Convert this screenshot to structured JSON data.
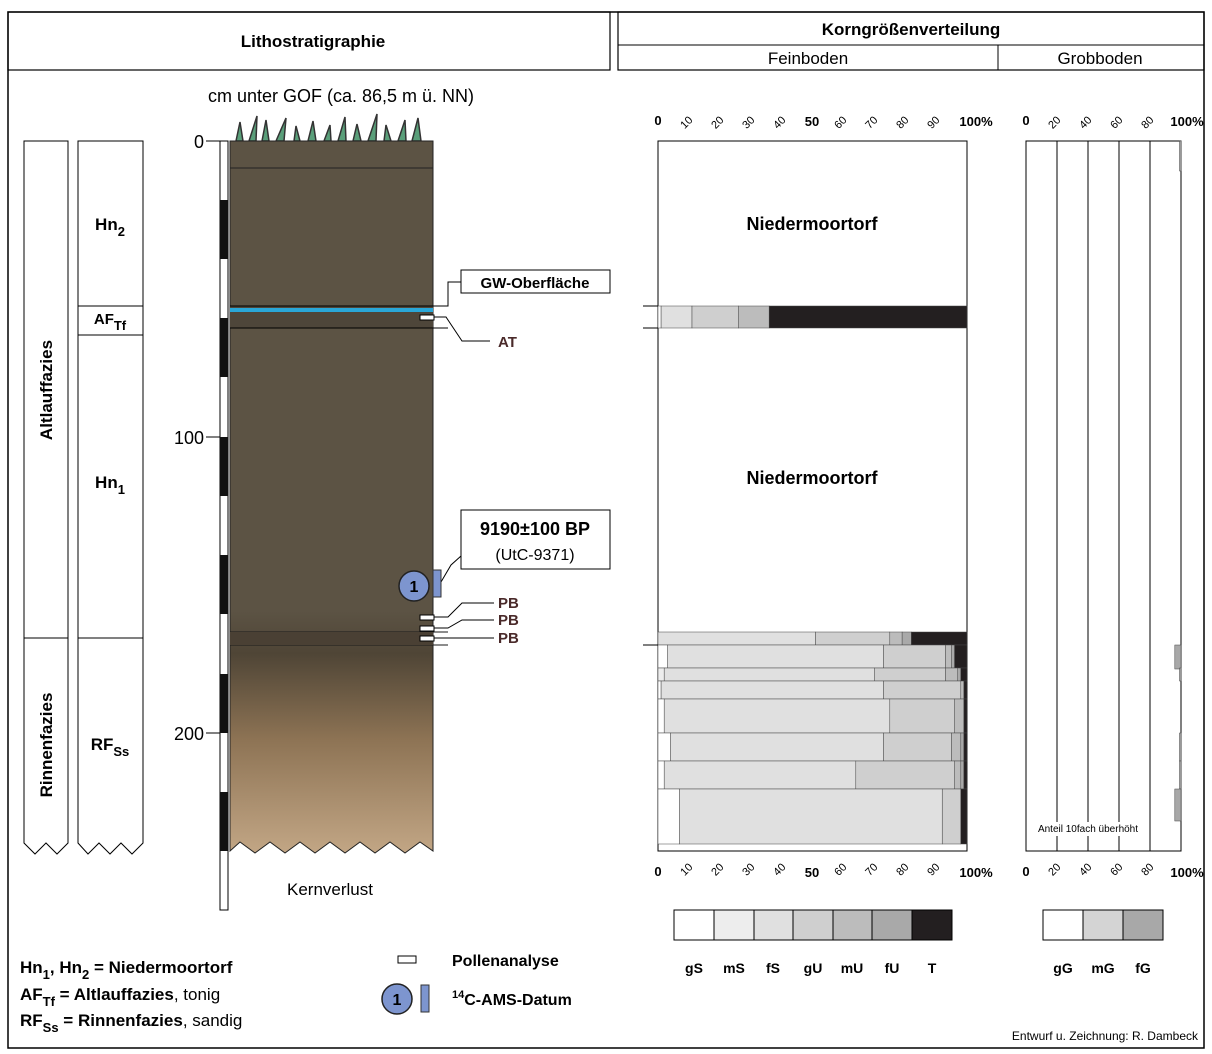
{
  "header": {
    "lithostratigraphie": "Lithostratigraphie",
    "korngroessenverteilung": "Korngrößenverteilung",
    "feinboden": "Feinboden",
    "grobboden": "Grobboden"
  },
  "depth_axis": {
    "title": "cm unter GOF (ca. 86,5 m ü. NN)",
    "ticks": [
      "0",
      "100",
      "200"
    ],
    "core_loss": "Kernverlust"
  },
  "facies": {
    "altlauf": "Altlauffazies",
    "rinnen": "Rinnenfazies"
  },
  "units": [
    {
      "base": "Hn",
      "sub": "2"
    },
    {
      "base": "AF",
      "sub": "Tf"
    },
    {
      "base": "Hn",
      "sub": "1"
    },
    {
      "base": "RF",
      "sub": "Ss"
    }
  ],
  "annotations": {
    "gw": "GW-Oberfläche",
    "at": "AT",
    "pb": [
      "PB",
      "PB",
      "PB"
    ],
    "date_main": "9190±100 BP",
    "date_lab": "(UtC-9371)",
    "sample_no": "1"
  },
  "fine_axis": {
    "ticks": [
      "0",
      "10",
      "20",
      "30",
      "40",
      "50",
      "60",
      "70",
      "80",
      "90",
      "100%"
    ],
    "labels": [
      "Niedermoortorf",
      "Niedermoortorf"
    ]
  },
  "coarse_axis": {
    "ticks": [
      "0",
      "20",
      "40",
      "60",
      "80",
      "100%"
    ],
    "note": "Anteil 10fach überhöht"
  },
  "fine_legend": [
    "gS",
    "mS",
    "fS",
    "gU",
    "mU",
    "fU",
    "T"
  ],
  "coarse_legend": [
    "gG",
    "mG",
    "fG"
  ],
  "legend": {
    "hn": [
      "Hn",
      "1",
      ", Hn",
      "2",
      " = Niedermoortorf"
    ],
    "af": [
      "AF",
      "Tf",
      " = Altlauffazies",
      ", tonig"
    ],
    "rf": [
      "RF",
      "Ss",
      " = Rinnenfazies",
      ", sandig"
    ],
    "pollen": "Pollenanalyse",
    "c14_sup": "14",
    "c14": "C-AMS-Datum"
  },
  "credit": "Entwurf u. Zeichnung: R. Dambeck",
  "colors": {
    "peat": "#5c5344",
    "groundwater": "#2aa7d8",
    "sample": "#7d95cf",
    "fine_classes": [
      "#ffffff",
      "#ededed",
      "#e0e0e0",
      "#cfcfcf",
      "#bcbcbc",
      "#a9a9a9",
      "#231f20"
    ],
    "coarse_classes": [
      "#ffffff",
      "#d4d4d4",
      "#a8a8a8"
    ]
  }
}
